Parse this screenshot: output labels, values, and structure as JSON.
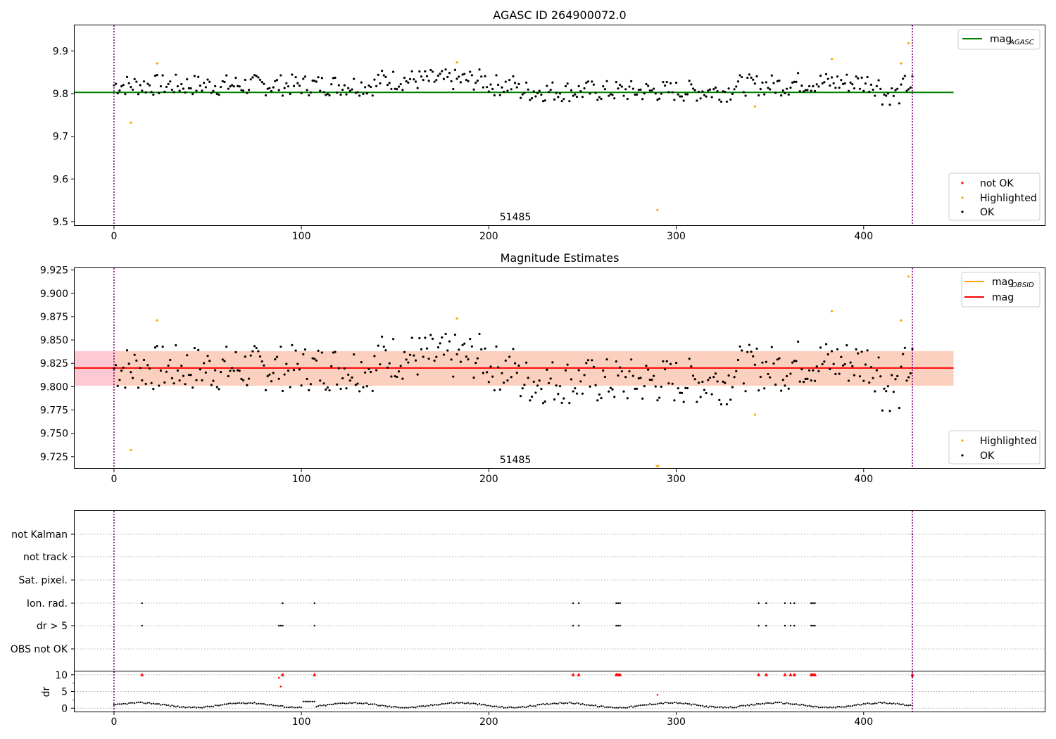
{
  "chart_data": [
    {
      "type": "scatter",
      "title": "AGASC ID 264900072.0",
      "annotation": "51485",
      "xlim": [
        -21,
        497
      ],
      "ylim": [
        9.49,
        9.96
      ],
      "xticks": [
        0,
        100,
        200,
        300,
        400
      ],
      "yticks": [
        9.5,
        9.6,
        9.7,
        9.8,
        9.9
      ],
      "ytick_labels": [
        "9.5",
        "9.6",
        "9.7",
        "9.8",
        "9.9"
      ],
      "hlines": [
        {
          "y": 9.803,
          "color": "#008000",
          "x_end": 448
        }
      ],
      "vlines": [
        0,
        426
      ],
      "legend_top": {
        "position": "upper right",
        "entries": [
          {
            "label_main": "mag",
            "label_sub": "AGASC",
            "color": "#008000"
          }
        ]
      },
      "legend_bottom": {
        "position": "lower right",
        "entries": [
          {
            "label": "not OK",
            "color": "#ff0000"
          },
          {
            "label": "Highlighted",
            "color": "#ffa500"
          },
          {
            "label": "OK",
            "color": "#000000"
          }
        ]
      },
      "highlighted_points": [
        [
          9,
          9.732
        ],
        [
          23,
          9.871
        ],
        [
          183,
          9.873
        ],
        [
          290,
          9.527
        ],
        [
          342,
          9.77
        ],
        [
          383,
          9.881
        ],
        [
          420,
          9.871
        ],
        [
          424,
          9.918
        ]
      ]
    },
    {
      "type": "scatter",
      "title": "Magnitude Estimates",
      "annotation": "51485",
      "xlim": [
        -21,
        497
      ],
      "ylim": [
        9.712,
        9.927
      ],
      "xticks": [
        0,
        100,
        200,
        300,
        400
      ],
      "yticks": [
        9.725,
        9.75,
        9.775,
        9.8,
        9.825,
        9.85,
        9.875,
        9.9,
        9.925
      ],
      "ytick_labels": [
        "9.725",
        "9.750",
        "9.775",
        "9.800",
        "9.825",
        "9.850",
        "9.875",
        "9.900",
        "9.925"
      ],
      "bands": [
        {
          "x0": -21,
          "x1": 0,
          "y0": 9.801,
          "y1": 9.838,
          "color": "#ffc0cb"
        },
        {
          "x0": 0,
          "x1": 448,
          "y0": 9.801,
          "y1": 9.838,
          "color": "#fcc8b4"
        }
      ],
      "hlines": [
        {
          "y": 9.82,
          "color": "#ff0000",
          "x_end": 448
        }
      ],
      "vlines": [
        0,
        426
      ],
      "legend_top": {
        "position": "upper right",
        "entries": [
          {
            "label_main": "mag",
            "label_sub": "OBSID",
            "color": "#ffa500"
          },
          {
            "label_main": "mag",
            "label_sub": "",
            "color": "#ff0000"
          }
        ]
      },
      "legend_bottom": {
        "position": "lower right",
        "entries": [
          {
            "label": "Highlighted",
            "color": "#ffa500"
          },
          {
            "label": "OK",
            "color": "#000000"
          }
        ]
      },
      "highlighted_points": [
        [
          9,
          9.732
        ],
        [
          23,
          9.871
        ],
        [
          183,
          9.873
        ],
        [
          342,
          9.77
        ],
        [
          383,
          9.881
        ],
        [
          420,
          9.871
        ],
        [
          424,
          9.918
        ]
      ],
      "out_of_range_marker": {
        "x": 290,
        "color": "#ffa500"
      }
    },
    {
      "type": "scatter",
      "xlim": [
        -21,
        497
      ],
      "xticks": [
        0,
        100,
        200,
        300,
        400
      ],
      "flag_rows": [
        "not Kalman",
        "not track",
        "Sat. pixel.",
        "Ion. rad.",
        "dr > 5",
        "OBS not OK"
      ],
      "flag_points": {
        "Ion. rad.": [
          15,
          90,
          107,
          245,
          248,
          268,
          269,
          270,
          344,
          348,
          358,
          361,
          363,
          372,
          373,
          374
        ],
        "dr > 5": [
          15,
          88,
          89,
          90,
          107,
          245,
          248,
          268,
          269,
          270,
          344,
          348,
          358,
          361,
          363,
          372,
          373,
          374
        ],
        "not Kalman": [
          426
        ]
      },
      "dr_ylabel": "dr",
      "dr_ylim": [
        -1,
        11
      ],
      "dr_yticks": [
        0,
        5,
        10
      ],
      "dr_ytick_labels": [
        "0",
        "5",
        "10"
      ],
      "dr_high_points": [
        [
          15,
          10
        ],
        [
          88,
          9.1
        ],
        [
          89,
          6.5
        ],
        [
          90,
          10
        ],
        [
          107,
          10
        ],
        [
          245,
          10
        ],
        [
          248,
          10
        ],
        [
          268,
          10
        ],
        [
          269,
          10
        ],
        [
          270,
          10
        ],
        [
          344,
          10
        ],
        [
          348,
          10
        ],
        [
          358,
          10
        ],
        [
          361,
          10
        ],
        [
          363,
          10
        ],
        [
          372,
          10
        ],
        [
          373,
          10
        ],
        [
          374,
          10
        ],
        [
          290,
          4.0
        ],
        [
          426,
          10
        ],
        [
          426,
          9.5
        ]
      ],
      "vlines": [
        0,
        426
      ]
    }
  ]
}
